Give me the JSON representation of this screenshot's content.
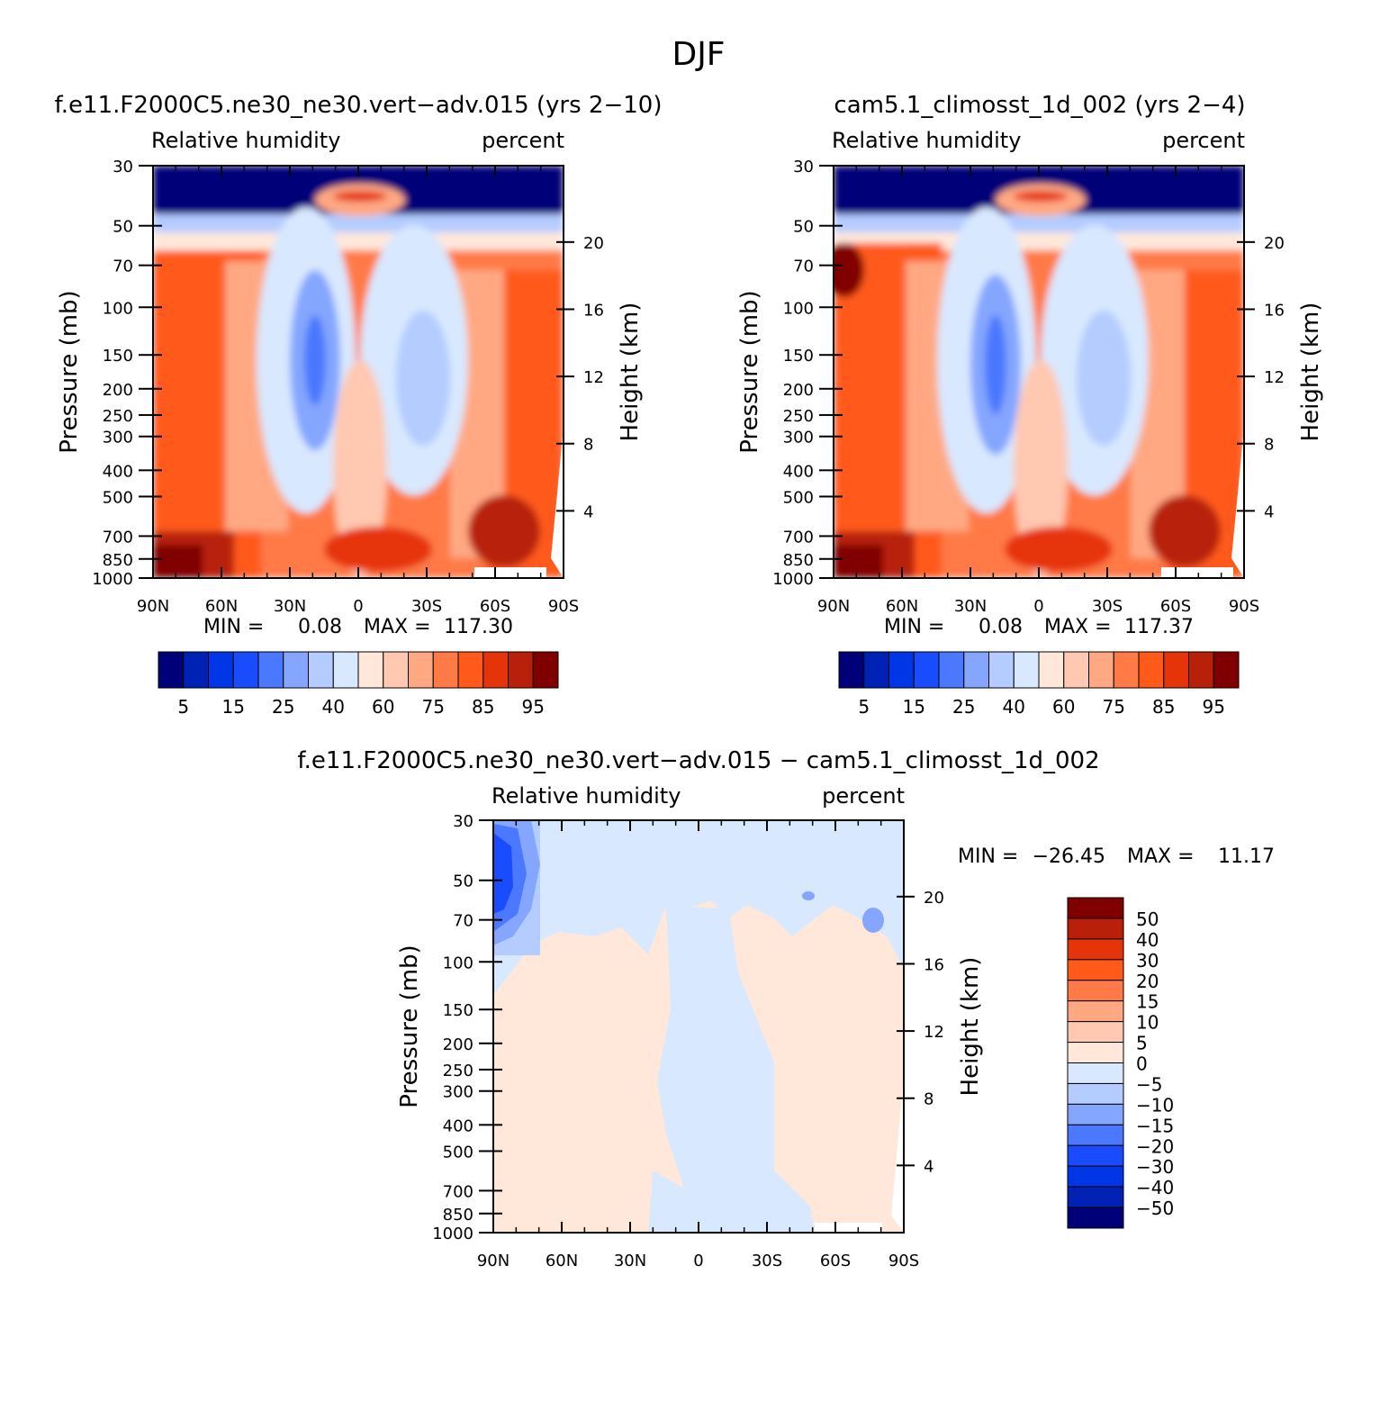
{
  "title": "DJF",
  "colors": {
    "abs_scale": [
      "#000078",
      "#0022b4",
      "#0036e6",
      "#1a4cff",
      "#4a78ff",
      "#84a6ff",
      "#b4ccff",
      "#d8e8ff",
      "#ffe8da",
      "#ffc8b0",
      "#ffa882",
      "#ff7a46",
      "#ff5a1a",
      "#e6340a",
      "#b8200a",
      "#800000"
    ],
    "diff_scale": [
      "#000078",
      "#0022b4",
      "#0036e6",
      "#1a4cff",
      "#4a78ff",
      "#84a6ff",
      "#b4ccff",
      "#d8e8ff",
      "#ffe8da",
      "#ffc8b0",
      "#ffa882",
      "#ff7a46",
      "#ff5a1a",
      "#e6340a",
      "#b8200a",
      "#800000"
    ]
  },
  "chart_data": [
    {
      "type": "heatmap",
      "title": "f.e11.F2000C5.ne30_ne30.vert−adv.015 (yrs 2−10)",
      "left_string": "Relative humidity",
      "right_string": "percent",
      "ylabel": "Pressure (mb)",
      "ylabel_right": "Height (km)",
      "x_ticks": [
        "90N",
        "60N",
        "30N",
        "0",
        "30S",
        "60S",
        "90S"
      ],
      "y_ticks": [
        "30",
        "50",
        "70",
        "100",
        "150",
        "200",
        "250",
        "300",
        "400",
        "500",
        "700",
        "850",
        "1000"
      ],
      "y_ticks_right": [
        "20",
        "16",
        "12",
        "8",
        "4"
      ],
      "min_label": "MIN =",
      "min_value": "0.08",
      "max_label": "MAX =",
      "max_value": "117.30",
      "legend_labels": [
        "5",
        "15",
        "25",
        "40",
        "60",
        "75",
        "85",
        "95"
      ]
    },
    {
      "type": "heatmap",
      "title": "cam5.1_climosst_1d_002 (yrs 2−4)",
      "left_string": "Relative humidity",
      "right_string": "percent",
      "ylabel": "Pressure (mb)",
      "ylabel_right": "Height (km)",
      "x_ticks": [
        "90N",
        "60N",
        "30N",
        "0",
        "30S",
        "60S",
        "90S"
      ],
      "y_ticks": [
        "30",
        "50",
        "70",
        "100",
        "150",
        "200",
        "250",
        "300",
        "400",
        "500",
        "700",
        "850",
        "1000"
      ],
      "y_ticks_right": [
        "20",
        "16",
        "12",
        "8",
        "4"
      ],
      "min_label": "MIN =",
      "min_value": "0.08",
      "max_label": "MAX =",
      "max_value": "117.37",
      "legend_labels": [
        "5",
        "15",
        "25",
        "40",
        "60",
        "75",
        "85",
        "95"
      ]
    },
    {
      "type": "heatmap",
      "title": "f.e11.F2000C5.ne30_ne30.vert−adv.015 − cam5.1_climosst_1d_002",
      "left_string": "Relative humidity",
      "right_string": "percent",
      "ylabel": "Pressure (mb)",
      "ylabel_right": "Height (km)",
      "x_ticks": [
        "90N",
        "60N",
        "30N",
        "0",
        "30S",
        "60S",
        "90S"
      ],
      "y_ticks": [
        "30",
        "50",
        "70",
        "100",
        "150",
        "200",
        "250",
        "300",
        "400",
        "500",
        "700",
        "850",
        "1000"
      ],
      "y_ticks_right": [
        "20",
        "16",
        "12",
        "8",
        "4"
      ],
      "min_label": "MIN =",
      "min_value": "−26.45",
      "max_label": "MAX =",
      "max_value": "11.17",
      "legend_labels": [
        "50",
        "40",
        "30",
        "20",
        "15",
        "10",
        "5",
        "0",
        "−5",
        "−10",
        "−15",
        "−20",
        "−30",
        "−40",
        "−50"
      ]
    }
  ]
}
